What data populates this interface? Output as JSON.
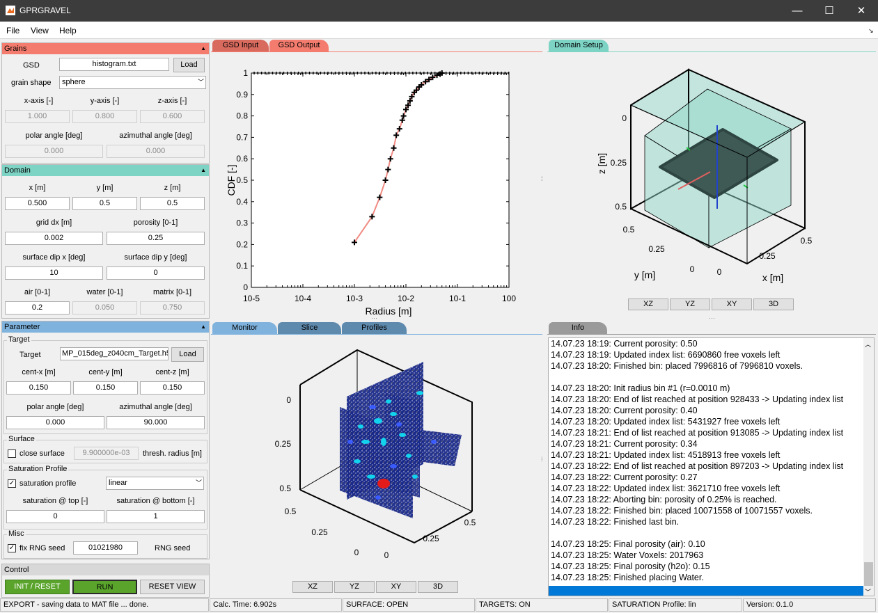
{
  "window": {
    "title": "GPRGRAVEL",
    "minimize": "—",
    "maximize": "☐",
    "close": "✕"
  },
  "menu": {
    "file": "File",
    "view": "View",
    "help": "Help",
    "undock": "↘"
  },
  "grains": {
    "header": "Grains",
    "arrow": "▲",
    "gsd_label": "GSD",
    "gsd_file": "histogram.txt",
    "load": "Load",
    "shape_label": "grain shape",
    "shape_value": "sphere",
    "xaxis_label": "x-axis [-]",
    "yaxis_label": "y-axis [-]",
    "zaxis_label": "z-axis [-]",
    "xaxis": "1.000",
    "yaxis": "0.800",
    "zaxis": "0.600",
    "polar_label": "polar angle [deg]",
    "azimuth_label": "azimuthal angle [deg]",
    "polar": "0.000",
    "azimuth": "0.000"
  },
  "domain": {
    "header": "Domain",
    "arrow": "▲",
    "x_label": "x [m]",
    "y_label": "y [m]",
    "z_label": "z [m]",
    "x": "0.500",
    "y": "0.5",
    "z": "0.5",
    "dx_label": "grid dx [m]",
    "porosity_label": "porosity [0-1]",
    "dx": "0.002",
    "porosity": "0.25",
    "dipx_label": "surface dip x [deg]",
    "dipy_label": "surface dip y [deg]",
    "dipx": "10",
    "dipy": "0",
    "air_label": "air [0-1]",
    "water_label": "water [0-1]",
    "matrix_label": "matrix [0-1]",
    "air": "0.2",
    "water": "0.050",
    "matrix": "0.750"
  },
  "parameter": {
    "header": "Parameter",
    "arrow": "▲",
    "target_group": "Target",
    "target_label": "Target",
    "target_file": "MP_015deg_z040cm_Target.h5",
    "load": "Load",
    "cx_label": "cent-x [m]",
    "cy_label": "cent-y [m]",
    "cz_label": "cent-z [m]",
    "cx": "0.150",
    "cy": "0.150",
    "cz": "0.150",
    "polar_label": "polar angle [deg]",
    "azimuth_label": "azimuthal angle [deg]",
    "polar": "0.000",
    "azimuth": "90.000",
    "surface_group": "Surface",
    "close_surface": "close surface",
    "thresh_value": "9.900000e-03",
    "thresh_label": "thresh. radius [m]",
    "sat_group": "Saturation Profile",
    "sat_check": "saturation profile",
    "sat_type": "linear",
    "sat_top_label": "saturation @ top [-]",
    "sat_bottom_label": "saturation @ bottom [-]",
    "sat_top": "0",
    "sat_bottom": "1",
    "misc_group": "Misc",
    "fix_rng": "fix RNG seed",
    "seed": "01021980",
    "seed_label": "RNG seed",
    "check_mark": "✓"
  },
  "control": {
    "header": "Control",
    "init": "INIT / RESET",
    "run": "RUN",
    "reset_view": "RESET VIEW"
  },
  "tabs_top": {
    "gsd_input": "GSD Input",
    "gsd_output": "GSD Output",
    "domain_setup": "Domain Setup"
  },
  "tabs_bottom": {
    "monitor": "Monitor",
    "slice": "Slice",
    "profiles": "Profiles",
    "info": "Info"
  },
  "views": {
    "xz": "XZ",
    "yz": "YZ",
    "xy": "XY",
    "d3": "3D"
  },
  "colors": {
    "grains": "#f47c6e",
    "domain": "#7dd3c4",
    "parameter": "#7fb2dc",
    "control": "#d8d8d8",
    "run": "#5aa42c",
    "curve": "#f08a82",
    "box": "#8fd8c8",
    "slab": "#3f5a55"
  },
  "chart_data": [
    {
      "type": "line",
      "title": "",
      "xlabel": "Radius [m]",
      "ylabel": "CDF [-]",
      "xscale": "log",
      "xlim": [
        1e-05,
        1
      ],
      "ylim": [
        0,
        1
      ],
      "xticks": [
        "10-5",
        "10-4",
        "10-3",
        "10-2",
        "10-1",
        "100"
      ],
      "yticks": [
        "0",
        "0.1",
        "0.2",
        "0.3",
        "0.4",
        "0.5",
        "0.6",
        "0.7",
        "0.8",
        "0.9",
        "1"
      ],
      "points": [
        [
          0.001,
          0.21
        ],
        [
          0.0022,
          0.33
        ],
        [
          0.0031,
          0.42
        ],
        [
          0.004,
          0.5
        ],
        [
          0.0045,
          0.55
        ],
        [
          0.005,
          0.6
        ],
        [
          0.0058,
          0.65
        ],
        [
          0.0065,
          0.71
        ],
        [
          0.0075,
          0.74
        ],
        [
          0.0085,
          0.78
        ],
        [
          0.009,
          0.8
        ],
        [
          0.01,
          0.83
        ],
        [
          0.011,
          0.85
        ],
        [
          0.012,
          0.87
        ],
        [
          0.013,
          0.89
        ],
        [
          0.0145,
          0.91
        ],
        [
          0.016,
          0.92
        ],
        [
          0.018,
          0.935
        ],
        [
          0.02,
          0.945
        ],
        [
          0.024,
          0.96
        ],
        [
          0.028,
          0.97
        ],
        [
          0.033,
          0.98
        ],
        [
          0.04,
          0.99
        ],
        [
          0.046,
          0.995
        ],
        [
          0.05,
          1
        ]
      ]
    }
  ],
  "domain_plot": {
    "z_label": "z [m]",
    "y_label": "y [m]",
    "x_label": "x [m]",
    "z_ticks": [
      "0",
      "0.25",
      "0.5"
    ],
    "y_ticks": [
      "0.5",
      "0.25",
      "0"
    ],
    "x_ticks": [
      "0",
      "0.25",
      "0.5"
    ]
  },
  "monitor_plot": {
    "z_ticks": [
      "0",
      "0.25",
      "0.5"
    ],
    "y_ticks": [
      "0.5",
      "0.25",
      "0"
    ],
    "x_ticks": [
      "0",
      "0.25",
      "0.5"
    ]
  },
  "info_lines": [
    "14.07.23 18:19: Current porosity: 0.50",
    "14.07.23 18:19: Updated index list: 6690860 free voxels left",
    "14.07.23 18:20: Finished bin: placed 7996816 of 7996810 voxels.",
    "",
    "14.07.23 18:20: Init radius bin #1 (r=0.0010 m)",
    "14.07.23 18:20: End of list reached at position 928433 -> Updating index list",
    "14.07.23 18:20: Current porosity: 0.40",
    "14.07.23 18:20: Updated index list: 5431927 free voxels left",
    "14.07.23 18:21: End of list reached at position 913085 -> Updating index list",
    "14.07.23 18:21: Current porosity: 0.34",
    "14.07.23 18:21: Updated index list: 4518913 free voxels left",
    "14.07.23 18:22: End of list reached at position 897203 -> Updating index list",
    "14.07.23 18:22: Current porosity: 0.27",
    "14.07.23 18:22: Updated index list: 3621710 free voxels left",
    "14.07.23 18:22: Aborting bin: porosity of 0.25% is reached.",
    "14.07.23 18:22: Finished bin: placed 10071558 of 10071557 voxels.",
    "14.07.23 18:22: Finished last bin.",
    "",
    "14.07.23 18:25: Final porosity (air): 0.10",
    "14.07.23 18:25: Water Voxels: 2017963",
    "14.07.23 18:25: Final porosity (h2o): 0.15",
    "14.07.23 18:25: Finished placing Water."
  ],
  "status": {
    "export": "EXPORT - saving data to MAT file ... done.",
    "calc": "Calc. Time: 6.902s",
    "surface": "SURFACE: OPEN",
    "targets": "TARGETS: ON",
    "saturation": "SATURATION Profile: lin",
    "version": "Version: 0.1.0"
  }
}
